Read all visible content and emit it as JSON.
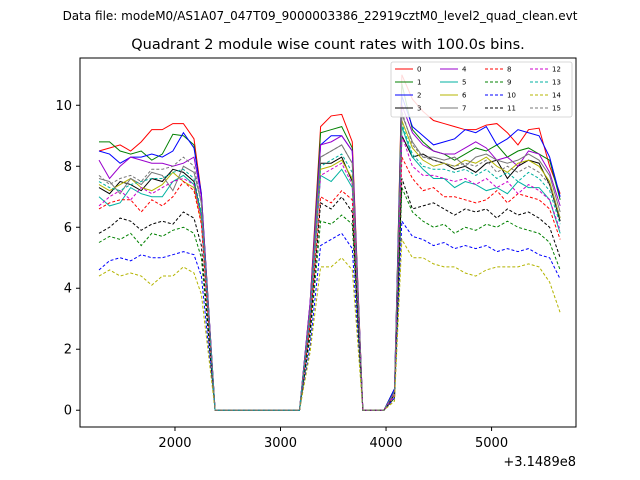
{
  "suptitle": "Data file: modeM0/AS1A07_047T09_9000003386_22919cztM0_level2_quad_clean.evt",
  "chart_data": {
    "type": "line",
    "title": "Quadrant 2 module wise count rates with 100.0s bins.",
    "xlabel": "",
    "ylabel": "",
    "x_offset_label": "+3.1489e8",
    "xlim": [
      1100,
      5800
    ],
    "ylim": [
      -0.55,
      11.55
    ],
    "x_ticks": [
      2000,
      3000,
      4000,
      5000
    ],
    "y_ticks": [
      0,
      2,
      4,
      6,
      8,
      10
    ],
    "grid": false,
    "legend_placement": "top-right",
    "x": [
      1280,
      1380,
      1480,
      1580,
      1680,
      1780,
      1880,
      1980,
      2080,
      2180,
      2250,
      2380,
      2480,
      2580,
      2680,
      2780,
      2880,
      2980,
      3080,
      3180,
      3280,
      3380,
      3480,
      3580,
      3680,
      3780,
      3880,
      3980,
      4080,
      4150,
      4250,
      4350,
      4450,
      4550,
      4650,
      4750,
      4850,
      4950,
      5050,
      5150,
      5250,
      5350,
      5450,
      5550,
      5650
    ],
    "series": [
      {
        "name": "0",
        "color": "#ff0000",
        "dash": "solid",
        "values": [
          8.5,
          8.6,
          8.7,
          8.5,
          8.8,
          9.2,
          9.2,
          9.4,
          9.4,
          8.9,
          7.1,
          0,
          0,
          0,
          0,
          0,
          0,
          0,
          0,
          0,
          3.5,
          9.3,
          9.65,
          9.7,
          8.8,
          0,
          0,
          0,
          0.4,
          11.0,
          10.2,
          9.8,
          9.5,
          9.4,
          9.3,
          9.2,
          9.2,
          9.35,
          9.4,
          9.1,
          8.7,
          9.2,
          9.25,
          8.0,
          7.1
        ]
      },
      {
        "name": "1",
        "color": "#008000",
        "dash": "solid",
        "values": [
          8.8,
          8.8,
          8.5,
          8.4,
          8.5,
          8.2,
          8.4,
          9.05,
          9.0,
          8.7,
          7.0,
          0,
          0,
          0,
          0,
          0,
          0,
          0,
          0,
          0,
          3.4,
          9.1,
          9.2,
          9.3,
          8.6,
          0,
          0,
          0,
          0.7,
          10.7,
          9.2,
          8.8,
          8.5,
          8.4,
          8.2,
          8.4,
          8.6,
          8.5,
          8.7,
          8.3,
          8.5,
          8.6,
          8.4,
          8.2,
          6.9
        ]
      },
      {
        "name": "2",
        "color": "#0000ff",
        "dash": "solid",
        "values": [
          8.5,
          8.4,
          8.1,
          8.3,
          8.3,
          8.4,
          8.3,
          8.5,
          9.1,
          8.6,
          7.1,
          0,
          0,
          0,
          0,
          0,
          0,
          0,
          0,
          0,
          3.5,
          8.7,
          9.0,
          9.0,
          8.5,
          0,
          0,
          0,
          0.7,
          10.3,
          9.3,
          9.0,
          8.7,
          8.8,
          8.9,
          9.2,
          9.1,
          9.3,
          8.7,
          8.9,
          9.2,
          9.1,
          9.0,
          8.3,
          7.0
        ]
      },
      {
        "name": "3",
        "color": "#000000",
        "dash": "solid",
        "values": [
          7.3,
          7.1,
          7.5,
          7.4,
          7.2,
          7.6,
          7.5,
          7.9,
          7.8,
          7.5,
          6.4,
          0,
          0,
          0,
          0,
          0,
          0,
          0,
          0,
          0,
          3.0,
          8.1,
          8.1,
          8.3,
          7.5,
          0,
          0,
          0,
          0.6,
          9.0,
          8.3,
          8.4,
          8.2,
          8.1,
          7.9,
          8.0,
          7.8,
          8.1,
          8.2,
          7.6,
          8.0,
          8.2,
          8.1,
          7.4,
          6.2
        ]
      },
      {
        "name": "4",
        "color": "#9900cc",
        "dash": "solid",
        "values": [
          8.2,
          7.6,
          8.0,
          8.3,
          8.2,
          8.1,
          8.1,
          8.0,
          8.1,
          8.3,
          7.0,
          0,
          0,
          0,
          0,
          0,
          0,
          0,
          0,
          0,
          3.5,
          8.7,
          8.8,
          9.0,
          8.5,
          0,
          0,
          0,
          0.6,
          10.0,
          9.1,
          8.7,
          8.5,
          8.4,
          8.4,
          8.6,
          8.8,
          8.6,
          8.2,
          8.3,
          8.0,
          8.5,
          8.4,
          7.8,
          6.7
        ]
      },
      {
        "name": "5",
        "color": "#00b2a0",
        "dash": "solid",
        "values": [
          7.0,
          6.7,
          6.8,
          7.3,
          7.1,
          7.0,
          7.0,
          7.5,
          7.7,
          7.4,
          6.4,
          0,
          0,
          0,
          0,
          0,
          0,
          0,
          0,
          0,
          3.0,
          7.7,
          7.5,
          7.9,
          7.3,
          0,
          0,
          0,
          0.5,
          9.3,
          8.3,
          7.9,
          7.6,
          7.6,
          7.3,
          7.5,
          7.4,
          7.2,
          7.3,
          7.1,
          7.5,
          7.3,
          7.3,
          6.9,
          5.8
        ]
      },
      {
        "name": "6",
        "color": "#b4b400",
        "dash": "solid",
        "values": [
          7.4,
          7.2,
          7.4,
          7.6,
          7.3,
          7.2,
          7.4,
          7.8,
          7.5,
          7.3,
          6.2,
          0,
          0,
          0,
          0,
          0,
          0,
          0,
          0,
          0,
          3.1,
          7.9,
          8.0,
          8.2,
          7.6,
          0,
          0,
          0,
          0.5,
          9.5,
          8.6,
          8.2,
          8.0,
          8.1,
          8.0,
          8.2,
          8.1,
          8.3,
          8.0,
          7.8,
          8.1,
          8.2,
          8.0,
          7.5,
          6.3
        ]
      },
      {
        "name": "7",
        "color": "#777777",
        "dash": "solid",
        "values": [
          7.6,
          7.5,
          7.1,
          7.6,
          7.4,
          7.8,
          7.7,
          7.2,
          8.0,
          7.8,
          6.8,
          0,
          0,
          0,
          0,
          0,
          0,
          0,
          0,
          0,
          3.3,
          8.3,
          8.5,
          8.7,
          8.1,
          0,
          0,
          0,
          0.6,
          9.7,
          8.8,
          8.3,
          8.3,
          8.2,
          8.3,
          8.0,
          8.3,
          8.4,
          8.2,
          8.1,
          8.2,
          8.4,
          8.2,
          7.7,
          6.5
        ]
      },
      {
        "name": "8",
        "color": "#ff0000",
        "dash": "dashed",
        "values": [
          6.6,
          6.8,
          6.9,
          6.9,
          6.5,
          6.9,
          6.7,
          7.0,
          7.5,
          7.2,
          6.1,
          0,
          0,
          0,
          0,
          0,
          0,
          0,
          0,
          0,
          2.8,
          7.0,
          6.8,
          7.2,
          6.9,
          0,
          0,
          0,
          0.5,
          8.3,
          7.6,
          7.2,
          7.3,
          7.0,
          7.0,
          6.9,
          6.8,
          6.9,
          7.2,
          6.8,
          7.1,
          7.0,
          6.9,
          6.6,
          5.6
        ]
      },
      {
        "name": "9",
        "color": "#008000",
        "dash": "dashed",
        "values": [
          5.5,
          5.7,
          5.6,
          5.8,
          5.4,
          5.8,
          5.7,
          5.9,
          6.0,
          5.8,
          5.0,
          0,
          0,
          0,
          0,
          0,
          0,
          0,
          0,
          0,
          2.4,
          6.2,
          6.1,
          6.4,
          6.1,
          0,
          0,
          0,
          0.4,
          7.3,
          6.5,
          6.2,
          6.0,
          6.1,
          5.8,
          6.0,
          5.9,
          6.1,
          6.0,
          6.2,
          6.0,
          5.9,
          5.8,
          5.5,
          4.6
        ]
      },
      {
        "name": "10",
        "color": "#0000ff",
        "dash": "dashed",
        "values": [
          4.6,
          4.9,
          5.0,
          4.9,
          5.1,
          5.0,
          5.0,
          5.1,
          5.2,
          5.1,
          4.4,
          0,
          0,
          0,
          0,
          0,
          0,
          0,
          0,
          0,
          2.1,
          5.4,
          5.6,
          5.8,
          5.3,
          0,
          0,
          0,
          0.4,
          6.2,
          5.7,
          5.6,
          5.4,
          5.5,
          5.3,
          5.4,
          5.3,
          5.4,
          5.2,
          5.3,
          5.2,
          5.3,
          5.1,
          5.0,
          4.3
        ]
      },
      {
        "name": "11",
        "color": "#000000",
        "dash": "dashed",
        "values": [
          5.8,
          6.0,
          6.3,
          6.2,
          5.9,
          6.1,
          6.2,
          6.1,
          6.5,
          6.3,
          5.4,
          0,
          0,
          0,
          0,
          0,
          0,
          0,
          0,
          0,
          2.6,
          6.8,
          6.6,
          7.0,
          6.5,
          0,
          0,
          0,
          0.5,
          7.6,
          6.6,
          6.7,
          6.8,
          6.6,
          6.4,
          6.6,
          6.5,
          6.6,
          6.3,
          6.6,
          6.4,
          6.5,
          6.3,
          6.0,
          5.0
        ]
      },
      {
        "name": "12",
        "color": "#cc00cc",
        "dash": "dashed",
        "values": [
          6.7,
          7.0,
          7.2,
          6.9,
          7.3,
          7.1,
          7.3,
          7.5,
          7.6,
          7.4,
          6.3,
          0,
          0,
          0,
          0,
          0,
          0,
          0,
          0,
          0,
          3.0,
          7.7,
          7.9,
          8.1,
          7.4,
          0,
          0,
          0,
          0.5,
          9.0,
          8.0,
          7.7,
          7.7,
          7.6,
          7.5,
          7.6,
          7.4,
          7.6,
          7.3,
          7.5,
          7.1,
          7.4,
          7.2,
          6.9,
          5.9
        ]
      },
      {
        "name": "13",
        "color": "#00b2a0",
        "dash": "dashed",
        "values": [
          7.5,
          7.3,
          7.2,
          7.4,
          7.5,
          7.6,
          7.6,
          7.8,
          7.9,
          7.6,
          6.5,
          0,
          0,
          0,
          0,
          0,
          0,
          0,
          0,
          0,
          3.1,
          8.0,
          8.2,
          8.4,
          7.8,
          0,
          0,
          0,
          0.6,
          9.4,
          8.4,
          8.0,
          7.9,
          7.9,
          7.8,
          7.9,
          7.7,
          7.9,
          7.6,
          7.8,
          7.5,
          7.8,
          7.6,
          7.2,
          6.1
        ]
      },
      {
        "name": "14",
        "color": "#b4b400",
        "dash": "dashed",
        "values": [
          4.4,
          4.6,
          4.4,
          4.5,
          4.4,
          4.1,
          4.4,
          4.4,
          4.7,
          4.5,
          3.8,
          0,
          0,
          0,
          0,
          0,
          0,
          0,
          0,
          0,
          1.9,
          4.7,
          4.7,
          5.0,
          4.6,
          0,
          0,
          0,
          0.3,
          5.6,
          5.0,
          5.0,
          4.8,
          4.7,
          4.7,
          4.5,
          4.4,
          4.6,
          4.7,
          4.7,
          4.7,
          4.8,
          4.7,
          4.2,
          3.2
        ]
      },
      {
        "name": "15",
        "color": "#777777",
        "dash": "dashed",
        "values": [
          7.7,
          7.4,
          7.6,
          7.7,
          7.5,
          7.9,
          7.9,
          8.0,
          8.3,
          8.0,
          6.8,
          0,
          0,
          0,
          0,
          0,
          0,
          0,
          0,
          0,
          3.2,
          8.3,
          8.5,
          8.7,
          8.1,
          0,
          0,
          0,
          0.6,
          9.8,
          8.7,
          8.3,
          8.2,
          8.1,
          8.0,
          8.1,
          8.0,
          8.2,
          7.8,
          8.0,
          7.8,
          8.0,
          7.8,
          7.4,
          6.3
        ]
      }
    ]
  }
}
